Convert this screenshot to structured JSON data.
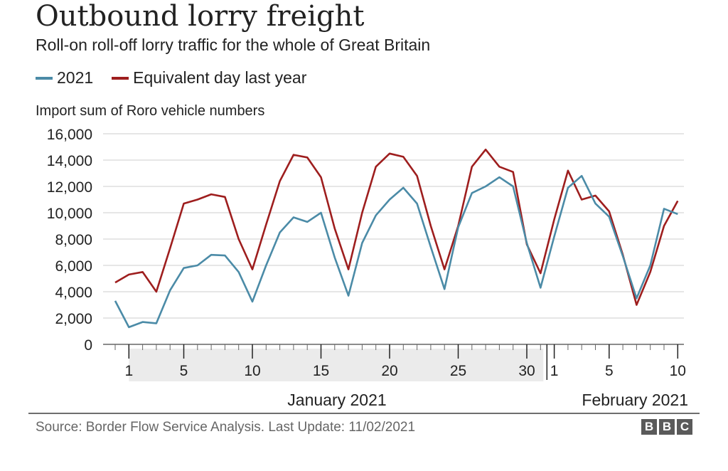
{
  "chart_data": {
    "type": "line",
    "title": "Outbound lorry freight",
    "subtitle": "Roll-on roll-off lorry traffic for the whole of Great Britain",
    "ylabel": "Import sum of Roro vehicle numbers",
    "ylim": [
      0,
      16000
    ],
    "yticks": [
      "16,000",
      "14,000",
      "12,000",
      "10,000",
      "8,000",
      "6,000",
      "4,000",
      "2,000",
      "0"
    ],
    "x_tick_labels": [
      {
        "day": 1,
        "label": "1"
      },
      {
        "day": 5,
        "label": "5"
      },
      {
        "day": 10,
        "label": "10"
      },
      {
        "day": 15,
        "label": "15"
      },
      {
        "day": 20,
        "label": "20"
      },
      {
        "day": 25,
        "label": "25"
      },
      {
        "day": 30,
        "label": "30"
      },
      {
        "day": 32,
        "label": "1"
      },
      {
        "day": 36,
        "label": "5"
      },
      {
        "day": 41,
        "label": "10"
      }
    ],
    "month_labels": [
      "January 2021",
      "February 2021"
    ],
    "grid": true,
    "legend_position": "top-left",
    "series": [
      {
        "name": "2021",
        "color": "#4b8ba7",
        "x": [
          "31 Dec 2020",
          "1 Jan 2021",
          "2 Jan 2021",
          "3 Jan 2021",
          "4 Jan 2021",
          "5 Jan 2021",
          "6 Jan 2021",
          "7 Jan 2021",
          "8 Jan 2021",
          "9 Jan 2021",
          "10 Jan 2021",
          "11 Jan 2021",
          "12 Jan 2021",
          "13 Jan 2021",
          "14 Jan 2021",
          "15 Jan 2021",
          "16 Jan 2021",
          "17 Jan 2021",
          "18 Jan 2021",
          "19 Jan 2021",
          "20 Jan 2021",
          "21 Jan 2021",
          "22 Jan 2021",
          "23 Jan 2021",
          "24 Jan 2021",
          "25 Jan 2021",
          "26 Jan 2021",
          "27 Jan 2021",
          "28 Jan 2021",
          "29 Jan 2021",
          "30 Jan 2021",
          "31 Jan 2021",
          "1 Feb 2021",
          "2 Feb 2021",
          "3 Feb 2021",
          "4 Feb 2021",
          "5 Feb 2021",
          "6 Feb 2021",
          "7 Feb 2021",
          "8 Feb 2021",
          "9 Feb 2021",
          "10 Feb 2021"
        ],
        "values": [
          3300,
          1300,
          1700,
          1600,
          4100,
          5800,
          6000,
          6800,
          6750,
          5500,
          3250,
          6000,
          8500,
          9650,
          9300,
          10000,
          6600,
          3700,
          7700,
          9800,
          11000,
          11900,
          10700,
          7400,
          4200,
          8900,
          11500,
          12000,
          12700,
          12000,
          7700,
          4300,
          8200,
          11900,
          12800,
          10700,
          9700,
          6700,
          3500,
          6000,
          10300,
          9900
        ]
      },
      {
        "name": "Equivalent day last year",
        "color": "#9e1e1e",
        "x": [
          "31 Dec 2020",
          "1 Jan 2021",
          "2 Jan 2021",
          "3 Jan 2021",
          "4 Jan 2021",
          "5 Jan 2021",
          "6 Jan 2021",
          "7 Jan 2021",
          "8 Jan 2021",
          "9 Jan 2021",
          "10 Jan 2021",
          "11 Jan 2021",
          "12 Jan 2021",
          "13 Jan 2021",
          "14 Jan 2021",
          "15 Jan 2021",
          "16 Jan 2021",
          "17 Jan 2021",
          "18 Jan 2021",
          "19 Jan 2021",
          "20 Jan 2021",
          "21 Jan 2021",
          "22 Jan 2021",
          "23 Jan 2021",
          "24 Jan 2021",
          "25 Jan 2021",
          "26 Jan 2021",
          "27 Jan 2021",
          "28 Jan 2021",
          "29 Jan 2021",
          "30 Jan 2021",
          "31 Jan 2021",
          "1 Feb 2021",
          "2 Feb 2021",
          "3 Feb 2021",
          "4 Feb 2021",
          "5 Feb 2021",
          "6 Feb 2021",
          "7 Feb 2021",
          "8 Feb 2021",
          "9 Feb 2021",
          "10 Feb 2021"
        ],
        "values": [
          4700,
          5300,
          5500,
          4000,
          7300,
          10700,
          11000,
          11400,
          11200,
          8000,
          5700,
          9100,
          12400,
          14400,
          14200,
          12700,
          8800,
          5700,
          10000,
          13500,
          14500,
          14250,
          12800,
          9000,
          5700,
          9000,
          13500,
          14800,
          13500,
          13100,
          7600,
          5400,
          9500,
          13200,
          11000,
          11300,
          10100,
          6800,
          3000,
          5500,
          9000,
          10900
        ]
      }
    ]
  },
  "source": "Source: Border Flow Service Analysis. Last Update: 11/02/2021",
  "logo": [
    "B",
    "B",
    "C"
  ],
  "colors": {
    "grid": "#cccccc",
    "axis": "#666666",
    "shade": "#ebebeb"
  }
}
